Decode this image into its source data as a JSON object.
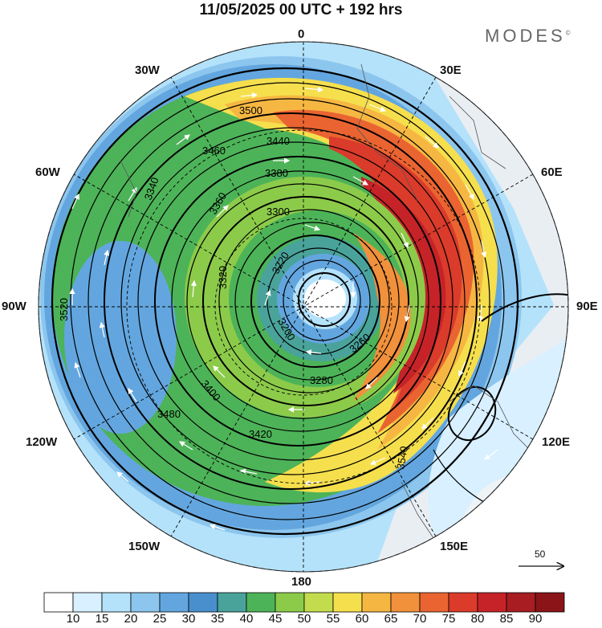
{
  "title": "11/05/2025  00 UTC  + 192 hrs",
  "brand": "MODES",
  "brand_mark": "©",
  "longitude_labels": {
    "top": "0",
    "top_right": "30E",
    "upper_right": "60E",
    "right": "90E",
    "lower_right": "120E",
    "bottom_right": "150E",
    "bottom": "180",
    "bottom_left": "150W",
    "lower_left": "120W",
    "left": "90W",
    "upper_left": "60W",
    "top_left": "30W"
  },
  "contour_labels": [
    "3500",
    "3460",
    "3440",
    "3380",
    "3360",
    "3300",
    "3220",
    "3200",
    "3520",
    "3480",
    "3420",
    "3400",
    "3340",
    "3320",
    "3280",
    "3260",
    "3540"
  ],
  "reference_vector": {
    "value": "50",
    "icon": "arrow-right-icon"
  },
  "colorbar": {
    "ticks": [
      "10",
      "15",
      "20",
      "25",
      "30",
      "35",
      "40",
      "45",
      "50",
      "55",
      "60",
      "65",
      "70",
      "75",
      "80",
      "85",
      "90"
    ],
    "colors": [
      "#ffffff",
      "#d8f0ff",
      "#b4e2fb",
      "#8cc6ee",
      "#63a6df",
      "#4a8fcd",
      "#4aa39a",
      "#4db358",
      "#8ccb4a",
      "#c3dc4e",
      "#f5df4d",
      "#f6b742",
      "#f1913b",
      "#ea6431",
      "#da3b2b",
      "#c52328",
      "#a71d22",
      "#8a1418"
    ]
  },
  "colors": {
    "contour": "#000000",
    "wind_vectors": "#ffffff",
    "coast": "#555555",
    "land_light": "#e6e6e6"
  }
}
